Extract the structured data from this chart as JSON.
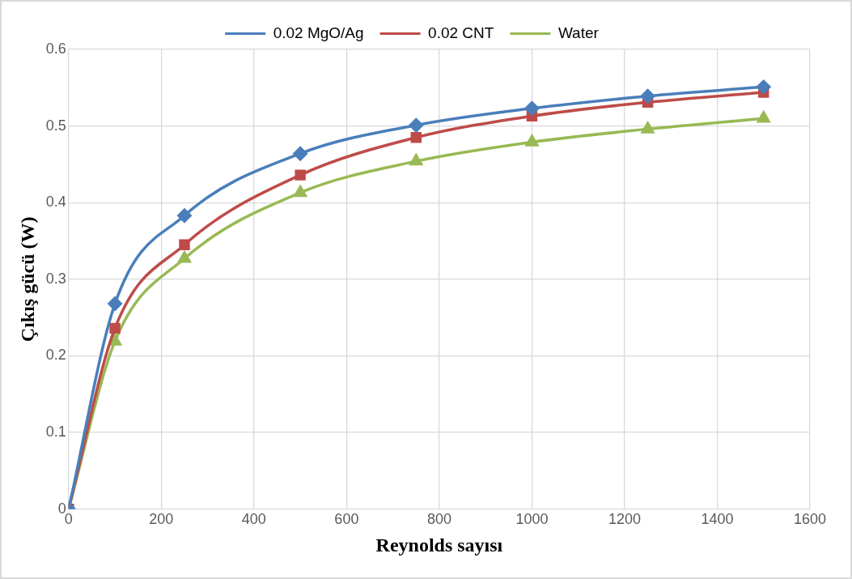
{
  "chart_data": {
    "type": "line",
    "xlabel": "Reynolds sayısı",
    "ylabel": "Çıkış gücü (W)",
    "x": [
      0,
      100,
      250,
      500,
      750,
      1000,
      1250,
      1500
    ],
    "series": [
      {
        "name": "0.02 MgO/Ag",
        "color": "#4a7ebb",
        "marker": "diamond",
        "values": [
          0,
          0.268,
          0.383,
          0.464,
          0.501,
          0.523,
          0.539,
          0.551
        ]
      },
      {
        "name": "0.02 CNT",
        "color": "#be4b48",
        "marker": "square",
        "values": [
          0,
          0.236,
          0.345,
          0.436,
          0.485,
          0.513,
          0.531,
          0.544
        ]
      },
      {
        "name": "Water",
        "color": "#98b954",
        "marker": "triangle",
        "values": [
          0,
          0.219,
          0.327,
          0.413,
          0.454,
          0.479,
          0.496,
          0.51
        ]
      }
    ],
    "xlim": [
      0,
      1600
    ],
    "xticks": [
      0,
      200,
      400,
      600,
      800,
      1000,
      1200,
      1400,
      1600
    ],
    "ylim": [
      0,
      0.6
    ],
    "yticks": [
      0,
      0.1,
      0.2,
      0.3,
      0.4,
      0.5,
      0.6
    ],
    "grid": true,
    "legend": "top",
    "line_style": "solid"
  }
}
